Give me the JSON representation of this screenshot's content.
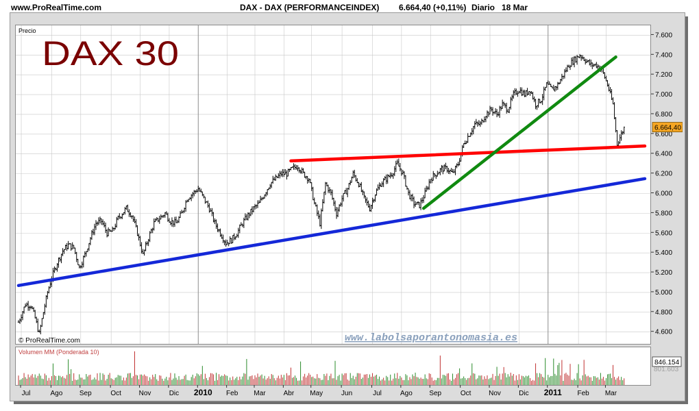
{
  "header": {
    "site": "www.ProRealTime.com",
    "instrument": "DAX - DAX (PERFORMANCEINDEX)",
    "quote": "6.664,40 (+0,11%)",
    "period": "Diario",
    "date": "18 Mar"
  },
  "chart_data": [
    {
      "type": "candlestick",
      "title": "DAX 30",
      "panel_label": "Precio",
      "watermark": "© ProRealTime.com",
      "site_link": "www.labolsaporantonomasia.es",
      "y_ticks": [
        4600,
        4800,
        5000,
        5200,
        5400,
        5600,
        5800,
        6000,
        6200,
        6400,
        6600,
        6800,
        7000,
        7200,
        7400,
        7600
      ],
      "y_tick_labels": [
        "4.600",
        "4.800",
        "5.000",
        "5.200",
        "5.400",
        "5.600",
        "5.800",
        "6.000",
        "6.200",
        "6.400",
        "6.600",
        "6.800",
        "7.000",
        "7.200",
        "7.400",
        "7.600"
      ],
      "ylim": [
        4480,
        7700
      ],
      "last_price": 6664.4,
      "last_price_label": "6.664,40",
      "grid": true,
      "x_labels": [
        "Jul",
        "Ago",
        "Sep",
        "Oct",
        "Nov",
        "Dic",
        "2010",
        "Feb",
        "Mar",
        "Abr",
        "May",
        "Jun",
        "Jul",
        "Ago",
        "Sep",
        "Oct",
        "Nov",
        "Dic",
        "2011",
        "Feb",
        "Mar"
      ],
      "bold_x_labels": [
        "2010",
        "2011"
      ],
      "x_label_index": [
        2,
        24,
        45,
        67,
        88,
        109,
        130,
        151,
        171,
        192,
        212,
        234,
        256,
        277,
        298,
        320,
        341,
        362,
        383,
        405,
        425
      ],
      "series_close": [
        {
          "i": 0,
          "v": 4700
        },
        {
          "i": 5,
          "v": 4880
        },
        {
          "i": 9,
          "v": 4870
        },
        {
          "i": 12,
          "v": 4740
        },
        {
          "i": 15,
          "v": 4580
        },
        {
          "i": 18,
          "v": 4800
        },
        {
          "i": 21,
          "v": 5000
        },
        {
          "i": 24,
          "v": 5150
        },
        {
          "i": 28,
          "v": 5300
        },
        {
          "i": 32,
          "v": 5420
        },
        {
          "i": 36,
          "v": 5480
        },
        {
          "i": 40,
          "v": 5450
        },
        {
          "i": 44,
          "v": 5250
        },
        {
          "i": 48,
          "v": 5380
        },
        {
          "i": 52,
          "v": 5550
        },
        {
          "i": 56,
          "v": 5700
        },
        {
          "i": 60,
          "v": 5720
        },
        {
          "i": 64,
          "v": 5600
        },
        {
          "i": 68,
          "v": 5620
        },
        {
          "i": 72,
          "v": 5750
        },
        {
          "i": 78,
          "v": 5850
        },
        {
          "i": 82,
          "v": 5780
        },
        {
          "i": 86,
          "v": 5600
        },
        {
          "i": 90,
          "v": 5380
        },
        {
          "i": 94,
          "v": 5550
        },
        {
          "i": 98,
          "v": 5700
        },
        {
          "i": 102,
          "v": 5750
        },
        {
          "i": 106,
          "v": 5800
        },
        {
          "i": 110,
          "v": 5720
        },
        {
          "i": 114,
          "v": 5700
        },
        {
          "i": 118,
          "v": 5800
        },
        {
          "i": 122,
          "v": 5950
        },
        {
          "i": 126,
          "v": 6000
        },
        {
          "i": 130,
          "v": 6050
        },
        {
          "i": 134,
          "v": 5950
        },
        {
          "i": 138,
          "v": 5850
        },
        {
          "i": 142,
          "v": 5700
        },
        {
          "i": 146,
          "v": 5600
        },
        {
          "i": 150,
          "v": 5500
        },
        {
          "i": 154,
          "v": 5530
        },
        {
          "i": 158,
          "v": 5600
        },
        {
          "i": 162,
          "v": 5700
        },
        {
          "i": 166,
          "v": 5780
        },
        {
          "i": 170,
          "v": 5850
        },
        {
          "i": 174,
          "v": 5900
        },
        {
          "i": 178,
          "v": 6000
        },
        {
          "i": 182,
          "v": 6100
        },
        {
          "i": 186,
          "v": 6150
        },
        {
          "i": 190,
          "v": 6200
        },
        {
          "i": 194,
          "v": 6200
        },
        {
          "i": 198,
          "v": 6250
        },
        {
          "i": 202,
          "v": 6280
        },
        {
          "i": 206,
          "v": 6200
        },
        {
          "i": 210,
          "v": 6150
        },
        {
          "i": 214,
          "v": 5900
        },
        {
          "i": 218,
          "v": 5700
        },
        {
          "i": 222,
          "v": 6100
        },
        {
          "i": 226,
          "v": 6000
        },
        {
          "i": 230,
          "v": 5800
        },
        {
          "i": 234,
          "v": 5950
        },
        {
          "i": 238,
          "v": 6050
        },
        {
          "i": 242,
          "v": 6200
        },
        {
          "i": 246,
          "v": 6100
        },
        {
          "i": 250,
          "v": 5950
        },
        {
          "i": 254,
          "v": 5850
        },
        {
          "i": 258,
          "v": 6000
        },
        {
          "i": 262,
          "v": 6100
        },
        {
          "i": 266,
          "v": 6150
        },
        {
          "i": 270,
          "v": 6200
        },
        {
          "i": 274,
          "v": 6300
        },
        {
          "i": 278,
          "v": 6200
        },
        {
          "i": 282,
          "v": 6000
        },
        {
          "i": 286,
          "v": 5900
        },
        {
          "i": 290,
          "v": 5880
        },
        {
          "i": 294,
          "v": 6000
        },
        {
          "i": 298,
          "v": 6150
        },
        {
          "i": 302,
          "v": 6200
        },
        {
          "i": 306,
          "v": 6250
        },
        {
          "i": 310,
          "v": 6250
        },
        {
          "i": 314,
          "v": 6200
        },
        {
          "i": 318,
          "v": 6300
        },
        {
          "i": 322,
          "v": 6500
        },
        {
          "i": 326,
          "v": 6600
        },
        {
          "i": 330,
          "v": 6700
        },
        {
          "i": 334,
          "v": 6700
        },
        {
          "i": 338,
          "v": 6800
        },
        {
          "i": 342,
          "v": 6850
        },
        {
          "i": 346,
          "v": 6800
        },
        {
          "i": 350,
          "v": 6900
        },
        {
          "i": 354,
          "v": 6850
        },
        {
          "i": 358,
          "v": 7000
        },
        {
          "i": 362,
          "v": 7050
        },
        {
          "i": 366,
          "v": 7000
        },
        {
          "i": 370,
          "v": 7050
        },
        {
          "i": 374,
          "v": 6900
        },
        {
          "i": 378,
          "v": 6950
        },
        {
          "i": 382,
          "v": 7100
        },
        {
          "i": 386,
          "v": 7050
        },
        {
          "i": 390,
          "v": 7100
        },
        {
          "i": 394,
          "v": 7200
        },
        {
          "i": 398,
          "v": 7300
        },
        {
          "i": 402,
          "v": 7350
        },
        {
          "i": 406,
          "v": 7400
        },
        {
          "i": 410,
          "v": 7350
        },
        {
          "i": 414,
          "v": 7300
        },
        {
          "i": 418,
          "v": 7300
        },
        {
          "i": 422,
          "v": 7250
        },
        {
          "i": 426,
          "v": 7100
        },
        {
          "i": 430,
          "v": 6900
        },
        {
          "i": 433,
          "v": 6500
        },
        {
          "i": 436,
          "v": 6600
        },
        {
          "i": 438,
          "v": 6664
        }
      ],
      "trendlines": [
        {
          "color": "#1428d8",
          "from": {
            "i": 0,
            "v": 5070
          },
          "to": {
            "i": 453,
            "v": 6150
          }
        },
        {
          "color": "#ff0000",
          "from": {
            "i": 197,
            "v": 6330
          },
          "to": {
            "i": 453,
            "v": 6480
          }
        },
        {
          "color": "#108a10",
          "from": {
            "i": 293,
            "v": 5850
          },
          "to": {
            "i": 432,
            "v": 7380
          }
        }
      ]
    },
    {
      "type": "bar",
      "title": "Volumen MM (Ponderada 10)",
      "last_value_label": "846.154",
      "secondary_label": "801.603"
    }
  ],
  "colors": {
    "grid": "#c8c8c8",
    "candle": "#000000",
    "vol_up": "#2a8a2a",
    "vol_down": "#c03030"
  }
}
